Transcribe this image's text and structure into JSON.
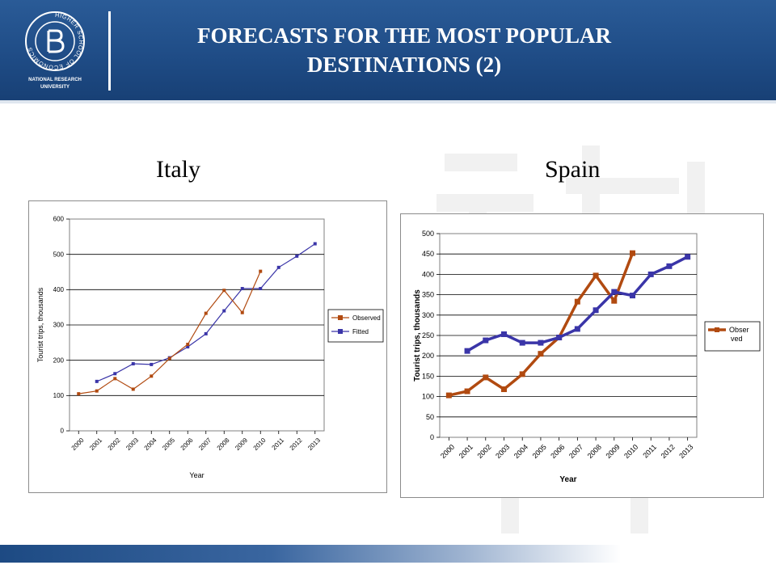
{
  "slide": {
    "title_line1": "FORECASTS FOR THE MOST POPULAR",
    "title_line2": "DESTINATIONS (2)",
    "logo_ring_text": "HIGHER SCHOOL OF ECONOMICS",
    "logo_caption_line1": "NATIONAL RESEARCH",
    "logo_caption_line2": "UNIVERSITY",
    "colors": {
      "header": "#1f4c86",
      "observed": "#b14a10",
      "fitted": "#3a35a8"
    }
  },
  "chart_data": [
    {
      "type": "line",
      "heading": "Italy",
      "xlabel": "Year",
      "ylabel": "Tourist trips, thousands",
      "ylim": [
        0,
        600
      ],
      "yticks": [
        "0",
        "100",
        "200",
        "300",
        "400",
        "500",
        "600"
      ],
      "categories": [
        "2000",
        "2001",
        "2002",
        "2003",
        "2004",
        "2005",
        "2006",
        "2007",
        "2008",
        "2009",
        "2010",
        "2011",
        "2012",
        "2013"
      ],
      "grid": true,
      "legend_position": "right",
      "series": [
        {
          "name": "Observed",
          "values": [
            105,
            113,
            148,
            118,
            155,
            205,
            245,
            333,
            398,
            335,
            452,
            null,
            null,
            null
          ]
        },
        {
          "name": "Fitted",
          "values": [
            null,
            140,
            162,
            190,
            188,
            207,
            238,
            275,
            340,
            403,
            403,
            463,
            495,
            530
          ]
        }
      ]
    },
    {
      "type": "line",
      "heading": "Spain",
      "xlabel": "Year",
      "ylabel": "Tourist trips, thousands",
      "ylim": [
        0,
        500
      ],
      "yticks": [
        "0",
        "50",
        "100",
        "150",
        "200",
        "250",
        "300",
        "350",
        "400",
        "450",
        "500"
      ],
      "categories": [
        "2000",
        "2001",
        "2002",
        "2003",
        "2004",
        "2005",
        "2006",
        "2007",
        "2008",
        "2009",
        "2010",
        "2011",
        "2012",
        "2013"
      ],
      "grid": true,
      "legend_position": "right",
      "series": [
        {
          "name": "Obser ved",
          "values": [
            103,
            113,
            147,
            118,
            155,
            205,
            245,
            333,
            397,
            335,
            452,
            null,
            null,
            null
          ]
        },
        {
          "name": "",
          "values": [
            null,
            212,
            238,
            253,
            232,
            232,
            245,
            266,
            312,
            357,
            348,
            400,
            420,
            443
          ]
        }
      ]
    }
  ]
}
